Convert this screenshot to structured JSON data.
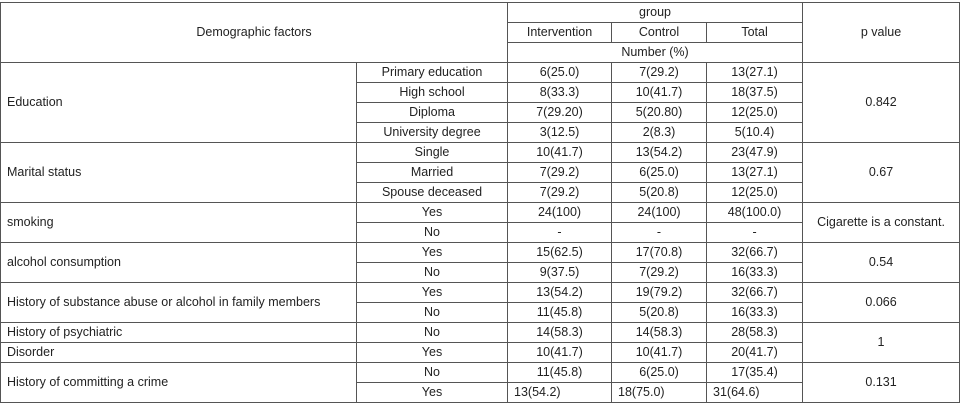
{
  "header": {
    "demographic": "Demographic factors",
    "group": "group",
    "intervention": "Intervention",
    "control": "Control",
    "total": "Total",
    "number_pct": "Number (%)",
    "p_value": "p value"
  },
  "education": {
    "label": "Education",
    "p": "0.842",
    "rows": [
      {
        "sub": "Primary education",
        "i": "6(25.0)",
        "c": "7(29.2)",
        "t": "13(27.1)"
      },
      {
        "sub": "High school",
        "i": "8(33.3)",
        "c": "10(41.7)",
        "t": "18(37.5)"
      },
      {
        "sub": "Diploma",
        "i": "7(29.20)",
        "c": "5(20.80)",
        "t": "12(25.0)"
      },
      {
        "sub": "University degree",
        "i": "3(12.5)",
        "c": "2(8.3)",
        "t": "5(10.4)"
      }
    ]
  },
  "marital": {
    "label": "Marital status",
    "p": "0.67",
    "rows": [
      {
        "sub": "Single",
        "i": "10(41.7)",
        "c": "13(54.2)",
        "t": "23(47.9)"
      },
      {
        "sub": "Married",
        "i": "7(29.2)",
        "c": "6(25.0)",
        "t": "13(27.1)"
      },
      {
        "sub": "Spouse deceased",
        "i": "7(29.2)",
        "c": "5(20.8)",
        "t": "12(25.0)"
      }
    ]
  },
  "smoking": {
    "label": "smoking",
    "p": "Cigarette is a constant.",
    "rows": [
      {
        "sub": "Yes",
        "i": "24(100)",
        "c": "24(100)",
        "t": "48(100.0)"
      },
      {
        "sub": "No",
        "i": "-",
        "c": "-",
        "t": "-"
      }
    ]
  },
  "alcohol": {
    "label": "alcohol consumption",
    "p": "0.54",
    "rows": [
      {
        "sub": "Yes",
        "i": "15(62.5)",
        "c": "17(70.8)",
        "t": "32(66.7)"
      },
      {
        "sub": "No",
        "i": "9(37.5)",
        "c": "7(29.2)",
        "t": "16(33.3)"
      }
    ]
  },
  "family": {
    "label": "History of substance abuse or alcohol in family members",
    "p": "0.066",
    "rows": [
      {
        "sub": "Yes",
        "i": "13(54.2)",
        "c": "19(79.2)",
        "t": "32(66.7)"
      },
      {
        "sub": "No",
        "i": "11(45.8)",
        "c": "5(20.8)",
        "t": "16(33.3)"
      }
    ]
  },
  "psychiatric": {
    "label1": "History of psychiatric",
    "label2": "Disorder",
    "p": "1",
    "rows": [
      {
        "sub": "No",
        "i": "14(58.3)",
        "c": "14(58.3)",
        "t": "28(58.3)"
      },
      {
        "sub": "Yes",
        "i": "10(41.7)",
        "c": "10(41.7)",
        "t": "20(41.7)"
      }
    ]
  },
  "crime": {
    "label": "History of committing a crime",
    "p": "0.131",
    "rows": [
      {
        "sub": "No",
        "i": "11(45.8)",
        "c": "6(25.0)",
        "t": "17(35.4)"
      },
      {
        "sub": "Yes",
        "i": "13(54.2)",
        "c": "18(75.0)",
        "t": "31(64.6)"
      }
    ]
  }
}
